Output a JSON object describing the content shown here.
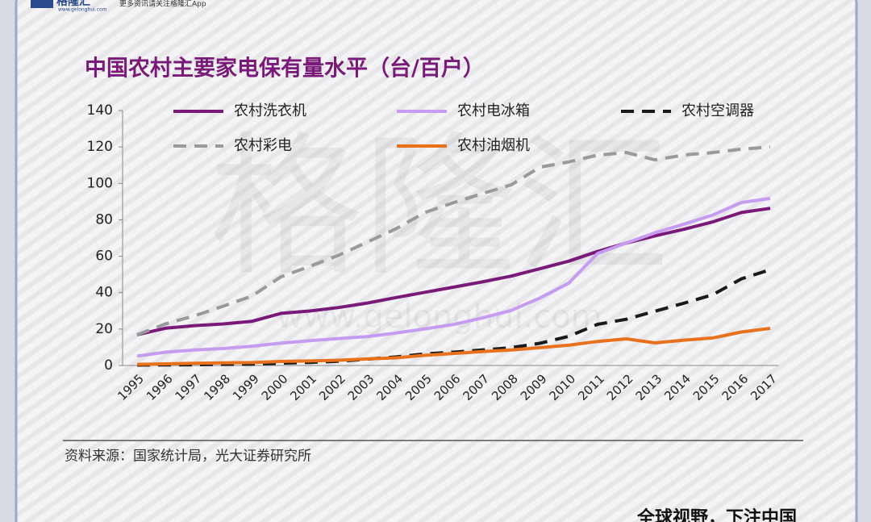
{
  "header": {
    "logo": "格隆汇",
    "site": "www.gelonghui.com",
    "tagline": "更多资讯请关注格隆汇App"
  },
  "watermark": {
    "text": "格隆汇",
    "url": "www.gelonghui.com"
  },
  "chart_data": {
    "type": "line",
    "title": "中国农村主要家电保有量水平（台/百户）",
    "categories": [
      "1995",
      "1996",
      "1997",
      "1998",
      "1999",
      "2000",
      "2001",
      "2002",
      "2003",
      "2004",
      "2005",
      "2006",
      "2007",
      "2008",
      "2009",
      "2010",
      "2011",
      "2012",
      "2013",
      "2014",
      "2015",
      "2016",
      "2017"
    ],
    "ylim": [
      0,
      140
    ],
    "yticks": [
      0,
      20,
      40,
      60,
      80,
      100,
      120,
      140
    ],
    "grid": false,
    "legend": "top",
    "series": [
      {
        "name": "农村洗衣机",
        "color": "#7a1a78",
        "dashed": false,
        "values": [
          16.9,
          20.5,
          21.9,
          22.8,
          24.3,
          28.6,
          29.9,
          31.8,
          34.3,
          37.3,
          40.2,
          43.0,
          45.9,
          49.1,
          53.1,
          57.3,
          62.6,
          67.2,
          71.2,
          74.8,
          78.8,
          84.0,
          86.3
        ]
      },
      {
        "name": "农村电冰箱",
        "color": "#c69cf0",
        "dashed": false,
        "values": [
          5.2,
          7.3,
          8.5,
          9.3,
          10.6,
          12.3,
          13.6,
          14.8,
          15.9,
          17.8,
          20.1,
          22.5,
          26.1,
          30.2,
          37.1,
          45.2,
          61.5,
          67.3,
          72.9,
          77.6,
          82.6,
          89.5,
          91.7
        ]
      },
      {
        "name": "农村空调器",
        "color": "#1a1a1a",
        "dashed": true,
        "values": [
          0.2,
          0.3,
          0.4,
          0.6,
          0.7,
          1.3,
          1.7,
          2.3,
          3.5,
          4.7,
          6.4,
          7.3,
          8.5,
          9.8,
          12.2,
          16.0,
          22.6,
          25.4,
          29.8,
          34.2,
          38.8,
          47.6,
          52.6
        ]
      },
      {
        "name": "农村彩电",
        "color": "#9a9a9a",
        "dashed": true,
        "values": [
          16.9,
          22.9,
          27.3,
          32.6,
          38.2,
          48.7,
          54.4,
          60.5,
          67.8,
          75.1,
          84.0,
          89.4,
          94.4,
          99.2,
          108.9,
          111.8,
          115.5,
          116.9,
          112.9,
          115.6,
          116.9,
          118.8,
          120.0
        ]
      },
      {
        "name": "农村油烟机",
        "color": "#e8711e",
        "dashed": false,
        "values": [
          0.6,
          0.9,
          1.2,
          1.4,
          1.6,
          2.2,
          2.5,
          2.9,
          3.6,
          4.2,
          5.6,
          6.6,
          7.6,
          8.5,
          9.8,
          11.1,
          13.2,
          14.6,
          12.4,
          13.9,
          15.1,
          18.4,
          20.4
        ]
      }
    ],
    "source": "资料来源：国家统计局，光大证券研究所"
  },
  "footer": {
    "slogan": "全球视野，下注中国"
  }
}
